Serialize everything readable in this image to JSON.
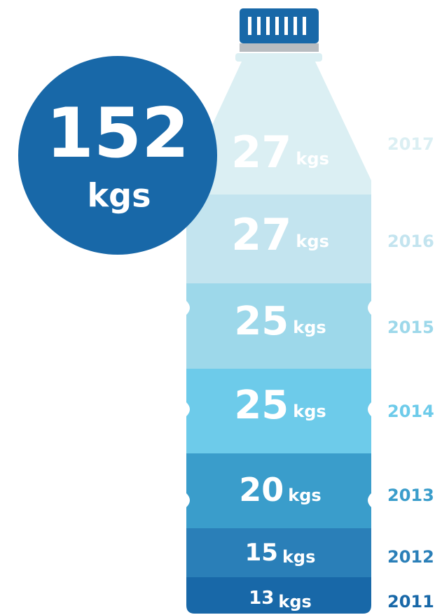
{
  "total": {
    "value": "152",
    "unit": "kgs"
  },
  "layers": [
    {
      "year": "2017",
      "value": "27",
      "unit": "kgs",
      "color": "#dbeff3"
    },
    {
      "year": "2016",
      "value": "27",
      "unit": "kgs",
      "color": "#c3e4ef"
    },
    {
      "year": "2015",
      "value": "25",
      "unit": "kgs",
      "color": "#9dd8ea"
    },
    {
      "year": "2014",
      "value": "25",
      "unit": "kgs",
      "color": "#6dcbea"
    },
    {
      "year": "2013",
      "value": "20",
      "unit": "kgs",
      "color": "#3a9dcb"
    },
    {
      "year": "2012",
      "value": "15",
      "unit": "kgs",
      "color": "#2a7fb8"
    },
    {
      "year": "2011",
      "value": "13",
      "unit": "kgs",
      "color": "#1868a8"
    }
  ]
}
